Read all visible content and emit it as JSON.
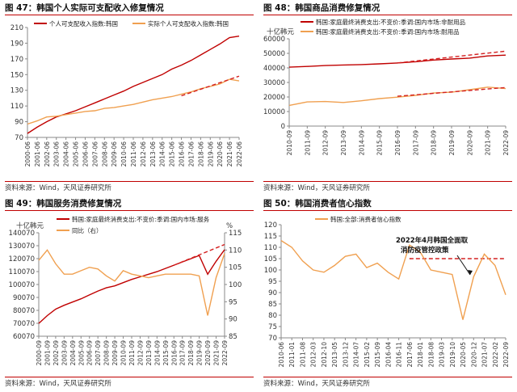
{
  "source_text": "资料来源：Wind，天风证券研究所",
  "colors": {
    "accent": "#c00000",
    "dark_red": "#c00000",
    "orange": "#f0a050",
    "dashed": "#d42020"
  },
  "chart_data": [
    {
      "type": "line",
      "title": "图 47：韩国个人实际可支配收入修复情况",
      "ylim": [
        70,
        210
      ],
      "yticks": [
        70,
        90,
        110,
        130,
        150,
        170,
        190,
        210
      ],
      "x": [
        "2000-06",
        "2001-06",
        "2002-06",
        "2003-06",
        "2004-06",
        "2005-06",
        "2006-06",
        "2007-06",
        "2008-06",
        "2009-06",
        "2010-06",
        "2011-06",
        "2012-06",
        "2013-06",
        "2014-06",
        "2015-06",
        "2016-06",
        "2017-06",
        "2018-06",
        "2019-06",
        "2020-06",
        "2021-06",
        "2022-06"
      ],
      "series": [
        {
          "name": "个人可支配收入指数:韩国",
          "color": "#c00000",
          "values": [
            75,
            83,
            90,
            96,
            100,
            104,
            109,
            114,
            119,
            124,
            129,
            135,
            140,
            145,
            150,
            157,
            162,
            168,
            175,
            182,
            189,
            197,
            199
          ]
        },
        {
          "name": "实际个人可支配收入指数:韩国",
          "color": "#f0a050",
          "values": [
            87,
            91,
            96,
            97,
            99,
            101,
            103,
            104,
            107,
            108,
            110,
            112,
            115,
            118,
            120,
            122,
            125,
            128,
            132,
            135,
            138,
            144,
            142
          ]
        }
      ],
      "trend": {
        "color": "#d42020",
        "from": [
          "2016-06",
          123
        ],
        "to": [
          "2022-09",
          148
        ]
      }
    },
    {
      "type": "line",
      "title": "图 48：韩国商品消费修复情况",
      "unit": "十亿韩元",
      "ylim": [
        0,
        60000
      ],
      "yticks": [
        0,
        10000,
        20000,
        30000,
        40000,
        50000,
        60000
      ],
      "x": [
        "2010-09",
        "2011-09",
        "2012-09",
        "2013-09",
        "2014-09",
        "2015-09",
        "2016-09",
        "2017-09",
        "2018-09",
        "2019-09",
        "2020-09",
        "2021-09",
        "2022-09"
      ],
      "series": [
        {
          "name": "韩国:家庭最终消费支出:不变价:季调:国内市场:非耐用品",
          "color": "#c00000",
          "values": [
            40500,
            41000,
            41600,
            42000,
            42300,
            42800,
            43400,
            44200,
            45400,
            46100,
            46700,
            48200,
            48800
          ]
        },
        {
          "name": "韩国:家庭最终消费支出:不变价:季调:国内市场:耐用品",
          "color": "#f0a050",
          "values": [
            14200,
            16600,
            16900,
            16200,
            17400,
            18900,
            19900,
            21100,
            22700,
            23300,
            25000,
            26800,
            25800
          ]
        }
      ],
      "trends": [
        {
          "color": "#d42020",
          "from": [
            "2016-09",
            43400
          ],
          "to": [
            "2022-09",
            51500
          ]
        },
        {
          "color": "#d42020",
          "from": [
            "2016-09",
            20500
          ],
          "to": [
            "2022-09",
            26500
          ]
        }
      ]
    },
    {
      "type": "line",
      "title": "图 49：韩国服务消费修复情况",
      "unit_left": "十亿韩元",
      "unit_right": "%",
      "ylim": [
        60070,
        140070
      ],
      "yticks": [
        60070,
        70070,
        80070,
        90070,
        100070,
        110070,
        120070,
        130070,
        140070
      ],
      "ylim_right": [
        85,
        115
      ],
      "yticks_right": [
        85,
        90,
        95,
        100,
        105,
        110,
        115
      ],
      "x": [
        "2000-09",
        "2001-09",
        "2002-09",
        "2003-09",
        "2004-09",
        "2005-09",
        "2006-09",
        "2007-09",
        "2008-09",
        "2009-09",
        "2010-09",
        "2011-09",
        "2012-09",
        "2013-09",
        "2014-09",
        "2015-09",
        "2016-09",
        "2017-09",
        "2018-09",
        "2019-09",
        "2020-09",
        "2021-09",
        "2022-09"
      ],
      "series": [
        {
          "name": "韩国:家庭最终消费支出:不变价:季调:国内市场:服务",
          "color": "#c00000",
          "axis": "left",
          "values": [
            70000,
            76000,
            81000,
            84000,
            86500,
            89000,
            92000,
            95000,
            97500,
            99000,
            101500,
            104000,
            106000,
            108000,
            110000,
            112500,
            115000,
            117500,
            120000,
            122500,
            108000,
            118000,
            127000
          ]
        },
        {
          "name": "同比（右）",
          "color": "#f0a050",
          "axis": "right",
          "values": [
            107,
            110,
            106,
            103,
            103,
            104,
            105,
            104.5,
            102.5,
            101,
            104,
            103,
            102.5,
            102,
            102.5,
            103,
            103,
            103,
            103,
            102.5,
            91,
            102,
            109
          ]
        }
      ],
      "trend": {
        "color": "#d42020",
        "from": [
          "2016-09",
          115000
        ],
        "to": [
          "2022-09",
          131000
        ]
      }
    },
    {
      "type": "line",
      "title": "图 50：韩国消费者信心指数",
      "ylim": [
        70,
        120
      ],
      "yticks": [
        70,
        75,
        80,
        85,
        90,
        95,
        100,
        105,
        110,
        115,
        120
      ],
      "x": [
        "2010-06",
        "2011-01",
        "2011-08",
        "2012-03",
        "2012-10",
        "2013-05",
        "2013-12",
        "2014-07",
        "2015-02",
        "2015-09",
        "2016-04",
        "2016-11",
        "2017-06",
        "2018-01",
        "2018-08",
        "2019-03",
        "2019-10",
        "2020-05",
        "2020-12",
        "2021-07",
        "2022-02",
        "2022-09"
      ],
      "series": [
        {
          "name": "韩国:全部:消费者信心指数",
          "color": "#f0a050",
          "values": [
            113,
            110,
            104,
            100,
            99,
            102,
            106,
            107,
            101,
            103,
            99,
            96,
            111,
            108,
            100,
            99,
            98,
            78,
            97,
            107,
            102,
            89
          ]
        }
      ],
      "reference_line": {
        "value": 105,
        "color": "#d42020",
        "from": "2017-01",
        "to": "2022-09"
      },
      "annotation": "2022年4月韩国全面取消防疫管控政策"
    }
  ]
}
